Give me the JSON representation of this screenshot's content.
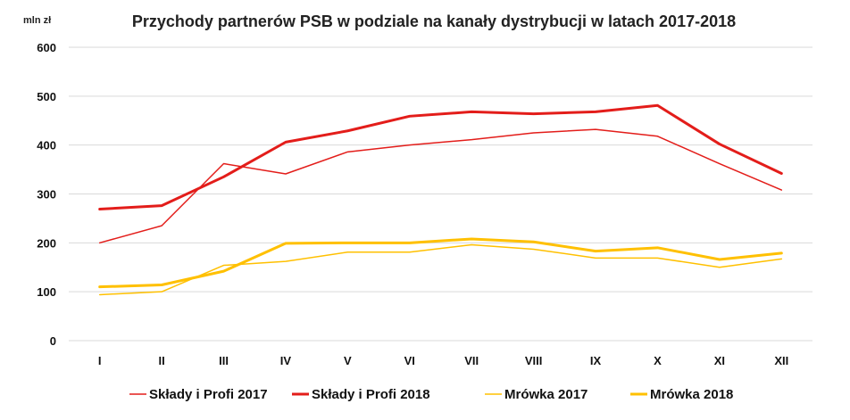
{
  "chart_data": {
    "type": "line",
    "title": "Przychody partnerów PSB w podziale na kanały dystrybucji w latach 2017-2018",
    "ylabel": "mln zł",
    "xlabel": "",
    "categories": [
      "I",
      "II",
      "III",
      "IV",
      "V",
      "VI",
      "VII",
      "VIII",
      "IX",
      "X",
      "XI",
      "XII"
    ],
    "yticks": [
      "0",
      "100",
      "200",
      "300",
      "400",
      "500",
      "600"
    ],
    "ylim": [
      0,
      600
    ],
    "grid": true,
    "legend_position": "bottom",
    "series": [
      {
        "name": "Składy i Profi 2017",
        "color": "#e31d1a",
        "weight": "thin",
        "values": [
          200,
          235,
          362,
          341,
          386,
          400,
          411,
          425,
          432,
          418,
          362,
          308
        ]
      },
      {
        "name": "Składy i Profi 2018",
        "color": "#e31d1a",
        "weight": "thick",
        "values": [
          269,
          276,
          335,
          406,
          429,
          459,
          468,
          464,
          468,
          481,
          402,
          342
        ]
      },
      {
        "name": "Mrówka 2017",
        "color": "#ffc000",
        "weight": "thin",
        "values": [
          94,
          100,
          154,
          162,
          181,
          181,
          196,
          187,
          169,
          169,
          150,
          167
        ]
      },
      {
        "name": "Mrówka 2018",
        "color": "#ffc000",
        "weight": "thick",
        "values": [
          110,
          114,
          142,
          199,
          200,
          200,
          208,
          202,
          183,
          190,
          166,
          179
        ]
      }
    ]
  }
}
